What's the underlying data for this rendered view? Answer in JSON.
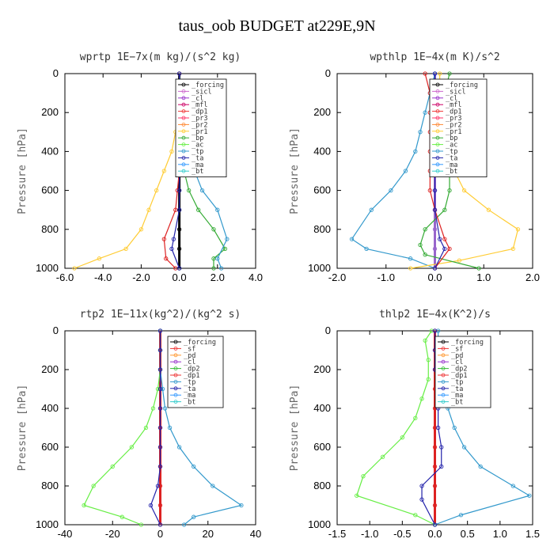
{
  "title": "taus_oob  BUDGET at229E,9N",
  "chart_data": [
    {
      "type": "line",
      "title": "wprtp   1E−7x(m kg)/(s^2 kg)",
      "ylabel": "Pressure  [hPa]",
      "xlim": [
        -6.0,
        4.0
      ],
      "xticks": [
        "-6.0",
        "-4.0",
        "-2.0",
        "0.0",
        "2.0",
        "4.0"
      ],
      "ylim": [
        0,
        1000
      ],
      "yticks": [
        "0",
        "200",
        "400",
        "600",
        "800",
        "1000"
      ],
      "legend": [
        "_forcing",
        "_sicl",
        "_cl",
        "_mfl",
        "_dp1",
        "_pr3",
        "_pr2",
        "_pr1",
        "_bp",
        "_ac",
        "_tp",
        "_ta",
        "_ma",
        "_bt"
      ],
      "series": [
        {
          "name": "_forcing",
          "color": "#000000",
          "x": [
            0,
            0,
            0,
            0,
            0,
            0,
            0,
            0,
            0,
            0,
            0
          ],
          "y": [
            0,
            100,
            200,
            300,
            400,
            500,
            600,
            700,
            800,
            900,
            1000
          ]
        },
        {
          "name": "_pr1",
          "color": "#ffcc33",
          "x": [
            0,
            0,
            -0.2,
            -0.4,
            -0.8,
            -1.2,
            -1.6,
            -2.0,
            -2.8,
            -4.2,
            -5.5
          ],
          "y": [
            0,
            100,
            300,
            400,
            500,
            600,
            700,
            800,
            900,
            950,
            1000
          ]
        },
        {
          "name": "_bp",
          "color": "#33aa33",
          "x": [
            0,
            0,
            0,
            0,
            0,
            0.5,
            1.0,
            1.8,
            2.4,
            1.8,
            1.8
          ],
          "y": [
            0,
            100,
            200,
            300,
            400,
            600,
            700,
            800,
            900,
            950,
            1000
          ]
        },
        {
          "name": "_tp",
          "color": "#3399cc",
          "x": [
            0,
            0.1,
            0.2,
            0.3,
            0.5,
            0.8,
            1.2,
            2.0,
            2.5,
            2.0,
            2.2
          ],
          "y": [
            0,
            100,
            200,
            300,
            400,
            500,
            600,
            700,
            850,
            950,
            1000
          ]
        },
        {
          "name": "_dp1",
          "color": "#dd2222",
          "x": [
            0,
            0,
            0,
            0,
            0,
            0,
            -0.1,
            -0.2,
            -0.8,
            -0.7,
            -0.2
          ],
          "y": [
            0,
            100,
            200,
            300,
            400,
            500,
            600,
            700,
            850,
            950,
            1000
          ]
        },
        {
          "name": "_ta",
          "color": "#2222aa",
          "x": [
            0,
            0,
            0,
            0,
            0,
            0,
            0,
            0,
            -0.3,
            -0.4,
            0
          ],
          "y": [
            0,
            100,
            200,
            300,
            400,
            500,
            600,
            700,
            850,
            900,
            1000
          ]
        }
      ]
    },
    {
      "type": "line",
      "title": "wpthlp   1E−4x(m K)/s^2",
      "ylabel": "Pressure  [hPa]",
      "xlim": [
        -2.0,
        2.0
      ],
      "xticks": [
        "-2.0",
        "-1.0",
        "0.0",
        "1.0",
        "2.0"
      ],
      "ylim": [
        0,
        1000
      ],
      "yticks": [
        "0",
        "200",
        "400",
        "600",
        "800",
        "1000"
      ],
      "legend": [
        "_forcing",
        "_sicl",
        "_cl",
        "_mfl",
        "_dp1",
        "_pr3",
        "_pr2",
        "_pr1",
        "_bp",
        "_ac",
        "_tp",
        "_ta",
        "_ma",
        "_bt"
      ],
      "series": [
        {
          "name": "_forcing",
          "color": "#9966cc",
          "x": [
            0,
            0,
            0,
            0,
            0,
            0,
            0,
            0,
            0,
            0,
            0
          ],
          "y": [
            0,
            100,
            200,
            300,
            400,
            500,
            600,
            700,
            800,
            900,
            1000
          ]
        },
        {
          "name": "_tp",
          "color": "#3399cc",
          "x": [
            0,
            -0.1,
            -0.2,
            -0.3,
            -0.4,
            -0.6,
            -0.9,
            -1.3,
            -1.7,
            -1.4,
            -0.5,
            0
          ],
          "y": [
            0,
            100,
            200,
            300,
            400,
            500,
            600,
            700,
            850,
            900,
            950,
            1000
          ]
        },
        {
          "name": "_pr1",
          "color": "#ffcc33",
          "x": [
            0.1,
            0.1,
            0.1,
            0.2,
            0.3,
            0.4,
            0.6,
            1.1,
            1.7,
            1.6,
            0.5,
            -0.5
          ],
          "y": [
            0,
            100,
            200,
            300,
            400,
            500,
            600,
            700,
            800,
            900,
            960,
            1000
          ]
        },
        {
          "name": "_bp",
          "color": "#33aa33",
          "x": [
            0.3,
            0.2,
            0.2,
            0.2,
            0.3,
            0.3,
            0.3,
            0.2,
            -0.2,
            -0.3,
            -0.2,
            0.9
          ],
          "y": [
            0,
            100,
            200,
            300,
            400,
            500,
            600,
            700,
            800,
            880,
            930,
            1000
          ]
        },
        {
          "name": "_dp1",
          "color": "#dd2222",
          "x": [
            -0.2,
            -0.1,
            -0.1,
            -0.1,
            -0.1,
            -0.1,
            -0.1,
            0,
            0.2,
            0.3,
            0
          ],
          "y": [
            0,
            100,
            200,
            300,
            400,
            500,
            600,
            700,
            850,
            900,
            1000
          ]
        },
        {
          "name": "_ta",
          "color": "#2222aa",
          "x": [
            0,
            0,
            0,
            0,
            0,
            0,
            0,
            0,
            0.1,
            0.2,
            0
          ],
          "y": [
            0,
            100,
            200,
            300,
            400,
            500,
            600,
            700,
            850,
            900,
            1000
          ]
        }
      ]
    },
    {
      "type": "line",
      "title": "rtp2   1E−11x(kg^2)/(kg^2 s)",
      "ylabel": "Pressure  [hPa]",
      "xlim": [
        -40,
        40
      ],
      "xticks": [
        "-40",
        "-20",
        "0",
        "20",
        "40"
      ],
      "ylim": [
        0,
        1000
      ],
      "yticks": [
        "0",
        "200",
        "400",
        "600",
        "800",
        "1000"
      ],
      "legend": [
        "_forcing",
        "_sf",
        "_pd",
        "_cl",
        "_dp2",
        "_dp1",
        "_tp",
        "_ta",
        "_ma",
        "_bt"
      ],
      "series": [
        {
          "name": "_forcing",
          "color": "#dd2222",
          "x": [
            0,
            0,
            0,
            0,
            0,
            0,
            0,
            0,
            0,
            0,
            0
          ],
          "y": [
            0,
            100,
            200,
            300,
            400,
            500,
            600,
            700,
            800,
            900,
            1000
          ]
        },
        {
          "name": "_dp1",
          "color": "#66ee44",
          "x": [
            0,
            0,
            0,
            -1,
            -3,
            -6,
            -12,
            -20,
            -28,
            -32,
            -16,
            -8
          ],
          "y": [
            0,
            100,
            200,
            300,
            400,
            500,
            600,
            700,
            800,
            900,
            960,
            1000
          ]
        },
        {
          "name": "_tp",
          "color": "#3399cc",
          "x": [
            0,
            0,
            0,
            1,
            2,
            4,
            8,
            14,
            22,
            34,
            14,
            10
          ],
          "y": [
            0,
            100,
            200,
            300,
            400,
            500,
            600,
            700,
            800,
            900,
            960,
            1000
          ]
        },
        {
          "name": "_ta",
          "color": "#2222aa",
          "x": [
            0,
            0,
            0,
            0,
            0,
            0,
            0,
            0,
            -1,
            -4,
            0
          ],
          "y": [
            0,
            100,
            200,
            300,
            400,
            500,
            600,
            700,
            800,
            900,
            1000
          ]
        }
      ]
    },
    {
      "type": "line",
      "title": "thlp2   1E−4x(K^2)/s",
      "ylabel": "Pressure  [hPa]",
      "xlim": [
        -1.5,
        1.5
      ],
      "xticks": [
        "-1.5",
        "-1.0",
        "-0.5",
        "0.0",
        "0.5",
        "1.0",
        "1.5"
      ],
      "ylim": [
        0,
        1000
      ],
      "yticks": [
        "0",
        "200",
        "400",
        "600",
        "800",
        "1000"
      ],
      "legend": [
        "_forcing",
        "_sf",
        "_pd",
        "_cl",
        "_dp2",
        "_dp1",
        "_tp",
        "_ta",
        "_ma",
        "_bt"
      ],
      "series": [
        {
          "name": "_forcing",
          "color": "#dd2222",
          "x": [
            0,
            0,
            0,
            0,
            0,
            0,
            0,
            0,
            0,
            0,
            0
          ],
          "y": [
            0,
            100,
            200,
            300,
            400,
            500,
            600,
            700,
            800,
            900,
            1000
          ]
        },
        {
          "name": "_dp1",
          "color": "#66ee44",
          "x": [
            -0.05,
            -0.15,
            -0.1,
            -0.1,
            -0.2,
            -0.3,
            -0.5,
            -0.8,
            -1.1,
            -1.2,
            -0.3,
            0
          ],
          "y": [
            0,
            50,
            150,
            250,
            350,
            450,
            550,
            650,
            750,
            850,
            950,
            1000
          ]
        },
        {
          "name": "_tp",
          "color": "#3399cc",
          "x": [
            0.05,
            0.05,
            0.1,
            0.15,
            0.2,
            0.3,
            0.45,
            0.7,
            1.2,
            1.45,
            0.4,
            0
          ],
          "y": [
            0,
            100,
            200,
            300,
            400,
            500,
            600,
            700,
            800,
            850,
            950,
            1000
          ]
        },
        {
          "name": "_ta",
          "color": "#2222aa",
          "x": [
            0,
            0,
            0,
            0.05,
            0.05,
            0.05,
            0.1,
            0.1,
            -0.2,
            -0.2,
            0
          ],
          "y": [
            0,
            100,
            200,
            300,
            400,
            500,
            600,
            700,
            800,
            870,
            1000
          ]
        }
      ]
    }
  ]
}
